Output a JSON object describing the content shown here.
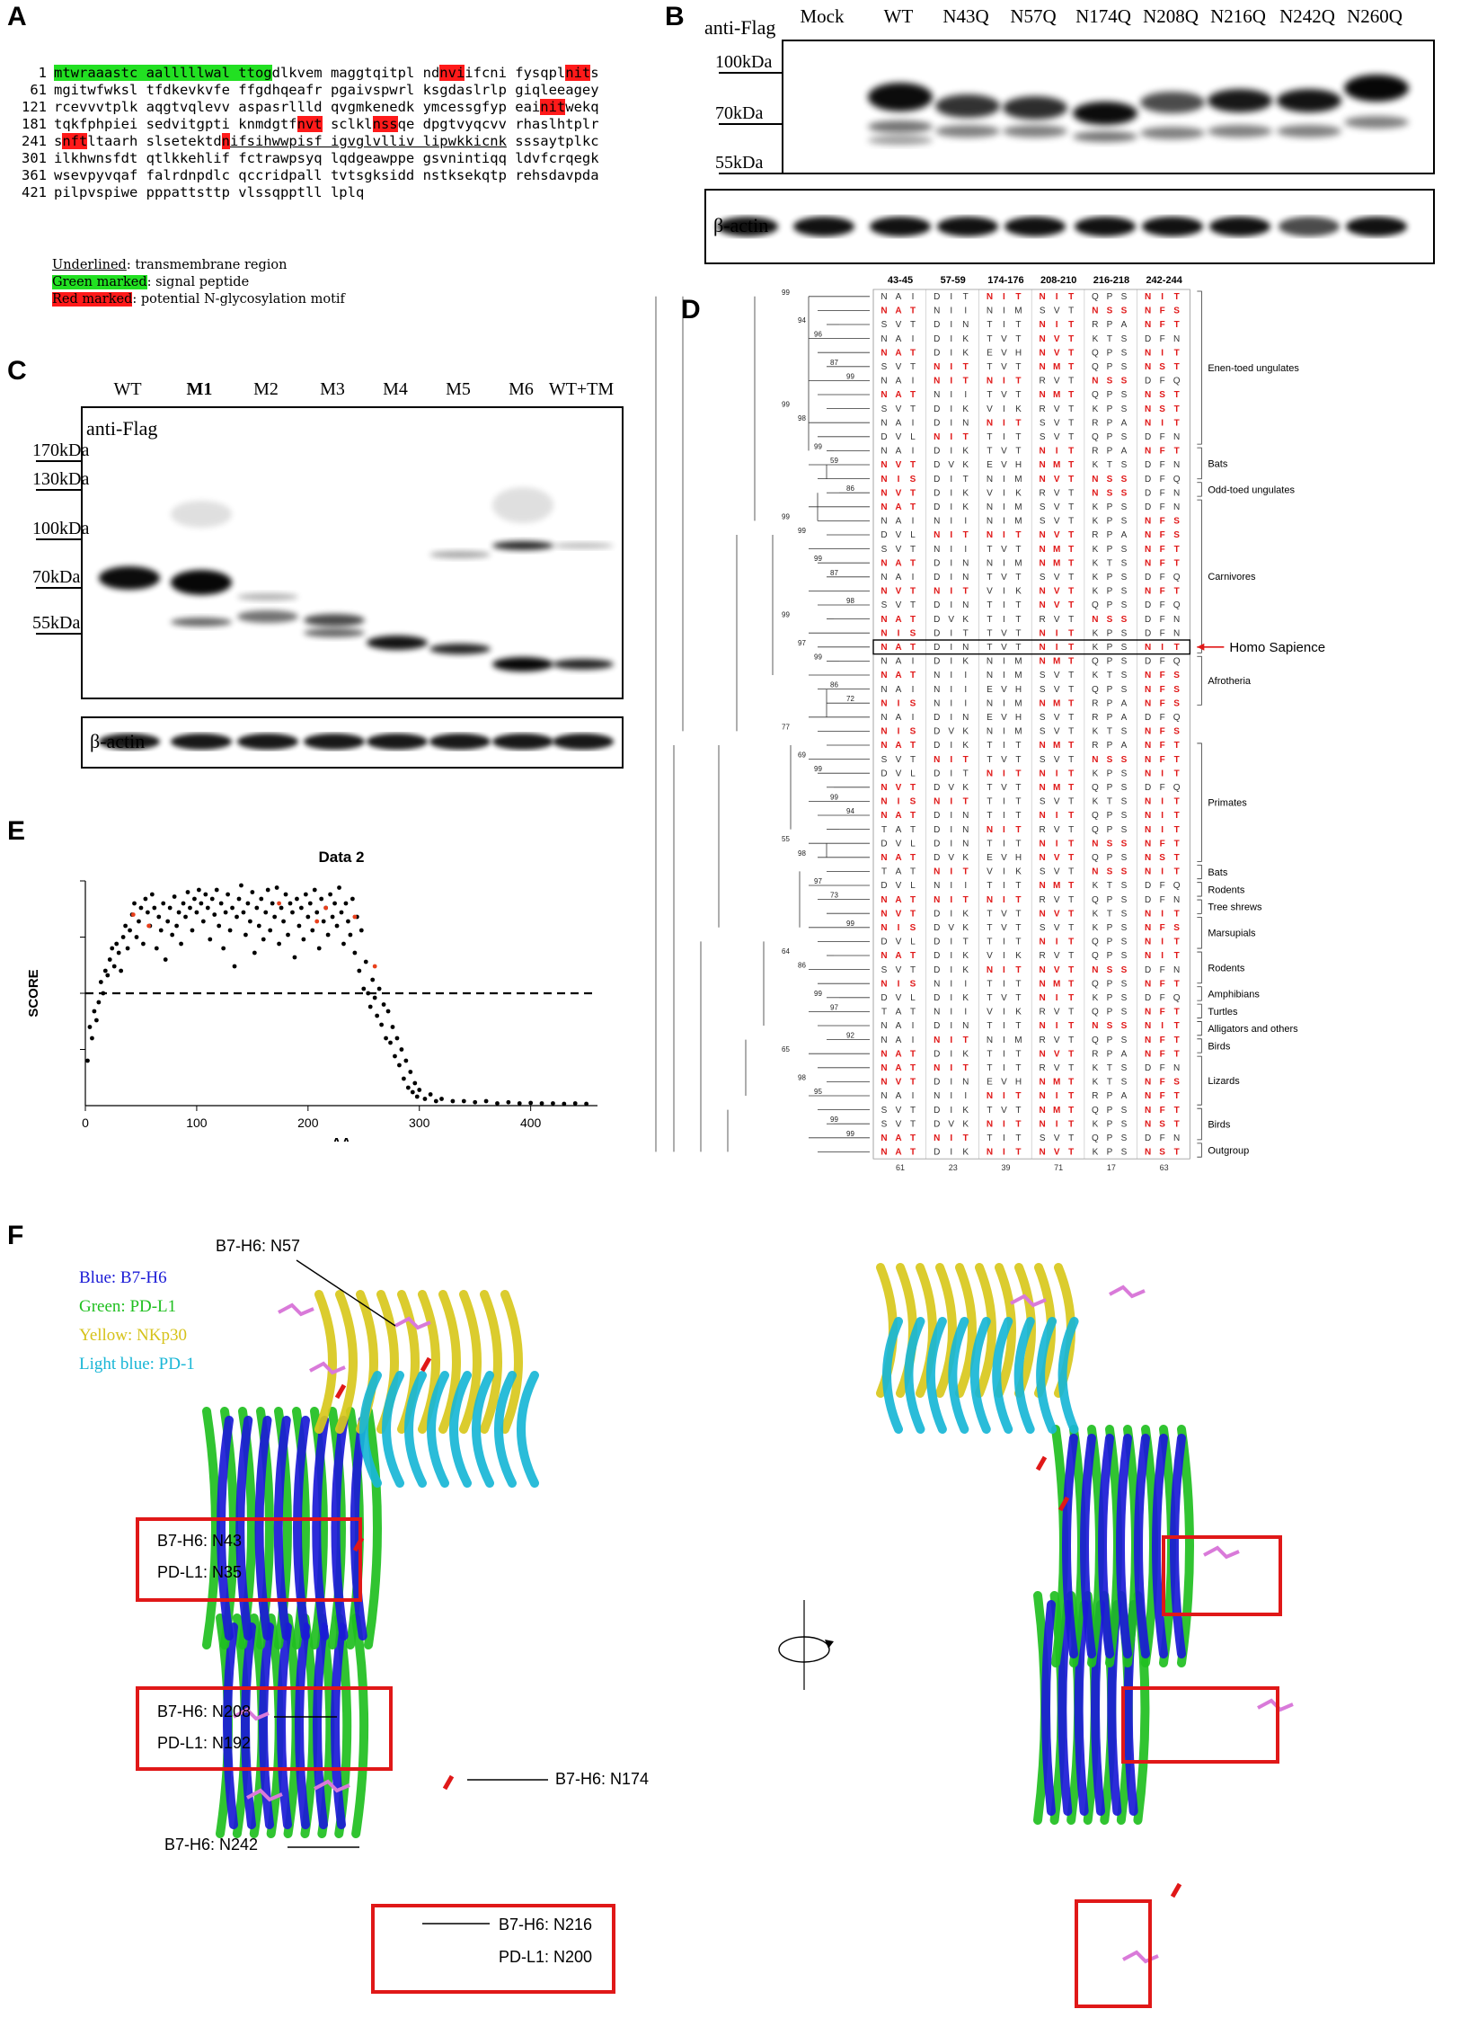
{
  "panels": {
    "A": "A",
    "B": "B",
    "C": "C",
    "D": "D",
    "E": "E",
    "F": "F"
  },
  "panelA": {
    "lines": [
      {
        "num": "1",
        "segments": [
          {
            "t": "mtwraaastc aalllllwal ttog",
            "s": "green"
          },
          {
            "t": "dlkvem maggtqitpl nd",
            "s": ""
          },
          {
            "t": "nvi",
            "s": "red"
          },
          {
            "t": "ifcni fysqpl",
            "s": ""
          },
          {
            "t": "nit",
            "s": "red"
          },
          {
            "t": "s",
            "s": ""
          }
        ]
      },
      {
        "num": "61",
        "segments": [
          {
            "t": "mgitwfwksl tfdkevkvfe ffgdhqeafr pgaivspwrl ksgdaslrlp giqleeagey",
            "s": ""
          }
        ]
      },
      {
        "num": "121",
        "segments": [
          {
            "t": "rcevvvtplk aqgtvqlevv aspasrllld qvgmkenedk ymcessgfyp eai",
            "s": ""
          },
          {
            "t": "nit",
            "s": "red"
          },
          {
            "t": "wekq",
            "s": ""
          }
        ]
      },
      {
        "num": "181",
        "segments": [
          {
            "t": "tqkfphpiei sedvitgpti knmdgtf",
            "s": ""
          },
          {
            "t": "nvt",
            "s": "red"
          },
          {
            "t": " sclkl",
            "s": ""
          },
          {
            "t": "nss",
            "s": "red"
          },
          {
            "t": "qe dpgtvyqcvv rhaslhtplr",
            "s": ""
          }
        ]
      },
      {
        "num": "241",
        "segments": [
          {
            "t": "s",
            "s": ""
          },
          {
            "t": "nft",
            "s": "red"
          },
          {
            "t": "ltaarh slsetektd",
            "s": ""
          },
          {
            "t": "n",
            "s": "red"
          },
          {
            "t": "ifsihwwpisf igvglvlliv lipwkkicnk",
            "s": "u"
          },
          {
            "t": " sssaytplkc",
            "s": ""
          }
        ]
      },
      {
        "num": "301",
        "segments": [
          {
            "t": "ilkhwnsfdt qtlkkehlif fctrawpsyq lqdgeawppe gsvnintiqq ldvfcrqegk",
            "s": ""
          }
        ]
      },
      {
        "num": "361",
        "segments": [
          {
            "t": "wsevpyvqaf falrdnpdlc qccridpall tvtsgksidd nstksekqtp rehsdavpda",
            "s": ""
          }
        ]
      },
      {
        "num": "421",
        "segments": [
          {
            "t": "pilpvspiwe pppattsttp vlssqpptll lplq",
            "s": ""
          }
        ]
      }
    ],
    "legend": [
      {
        "key": "Underlined",
        "rest": ": transmembrane region",
        "s": "u"
      },
      {
        "key": "Green marked",
        "rest": ": signal  peptide",
        "s": "green"
      },
      {
        "key": "Red marked",
        "rest": ": potential N-glycosylation motif",
        "s": "red"
      }
    ]
  },
  "panelB": {
    "antibody": "anti-Flag",
    "lanes": [
      "Mock",
      "WT",
      "N43Q",
      "N57Q",
      "N174Q",
      "N208Q",
      "N216Q",
      "N242Q",
      "N260Q"
    ],
    "markers": [
      "100kDa",
      "70kDa",
      "55kDa"
    ],
    "loading": "β-actin"
  },
  "panelC": {
    "antibody": "anti-Flag",
    "lanes": [
      "WT",
      "M1",
      "M2",
      "M3",
      "M4",
      "M5",
      "M6",
      "WT+TM"
    ],
    "markers": [
      "170kDa",
      "130kDa",
      "100kDa",
      "70kDa",
      "55kDa"
    ],
    "loading": "β-actin"
  },
  "panelD": {
    "sites": [
      "43-45",
      "57-59",
      "174-176",
      "208-210",
      "216-218",
      "242-244"
    ],
    "groups": [
      "Enen-toed ungulates",
      "Bats",
      "Odd-toed ungulates",
      "Carnivores",
      "Afrotheria",
      "Homo Sapience",
      "Primates",
      "Bats",
      "Rodents",
      "Tree shrews",
      "Marsupials",
      "Rodents",
      "Amphibians",
      "Turtles",
      "Alligators and others",
      "Birds",
      "Lizards",
      "Birds",
      "Outgroup"
    ],
    "bootstrap": [
      "99",
      "94",
      "96",
      "87",
      "99",
      "99",
      "98",
      "99",
      "59",
      "86",
      "99",
      "99",
      "99",
      "87",
      "98",
      "99",
      "97",
      "99",
      "86",
      "72",
      "77",
      "69",
      "99",
      "99",
      "94",
      "55",
      "98",
      "97",
      "73",
      "99",
      "64",
      "86",
      "99",
      "97",
      "92",
      "65",
      "98",
      "95",
      "99",
      "99"
    ],
    "footer": [
      "61",
      "23",
      "39",
      "71",
      "17",
      "63"
    ]
  },
  "panelE": {
    "chart_data": {
      "type": "scatter",
      "title": "Data 2",
      "xlabel": "AA",
      "ylabel": "SCORE",
      "xticks": [
        0,
        100,
        200,
        300,
        400
      ],
      "xlim": [
        0,
        460
      ],
      "ylim": [
        0,
        1
      ],
      "threshold": 0.5,
      "grid": false,
      "series": [
        {
          "color": "#000000",
          "points": [
            [
              2,
              0.2
            ],
            [
              4,
              0.35
            ],
            [
              6,
              0.3
            ],
            [
              8,
              0.42
            ],
            [
              10,
              0.38
            ],
            [
              12,
              0.46
            ],
            [
              14,
              0.55
            ],
            [
              16,
              0.5
            ],
            [
              18,
              0.6
            ],
            [
              20,
              0.58
            ],
            [
              22,
              0.65
            ],
            [
              24,
              0.7
            ],
            [
              26,
              0.62
            ],
            [
              28,
              0.72
            ],
            [
              30,
              0.68
            ],
            [
              32,
              0.6
            ],
            [
              34,
              0.75
            ],
            [
              36,
              0.8
            ],
            [
              38,
              0.7
            ],
            [
              40,
              0.78
            ],
            [
              42,
              0.85
            ],
            [
              44,
              0.9
            ],
            [
              46,
              0.75
            ],
            [
              48,
              0.82
            ],
            [
              50,
              0.88
            ],
            [
              52,
              0.72
            ],
            [
              54,
              0.92
            ],
            [
              56,
              0.86
            ],
            [
              58,
              0.8
            ],
            [
              60,
              0.94
            ],
            [
              62,
              0.88
            ],
            [
              64,
              0.7
            ],
            [
              66,
              0.84
            ],
            [
              68,
              0.78
            ],
            [
              70,
              0.9
            ],
            [
              72,
              0.65
            ],
            [
              74,
              0.82
            ],
            [
              76,
              0.88
            ],
            [
              78,
              0.76
            ],
            [
              80,
              0.93
            ],
            [
              82,
              0.8
            ],
            [
              84,
              0.86
            ],
            [
              86,
              0.72
            ],
            [
              88,
              0.9
            ],
            [
              90,
              0.84
            ],
            [
              92,
              0.95
            ],
            [
              94,
              0.88
            ],
            [
              96,
              0.78
            ],
            [
              98,
              0.92
            ],
            [
              100,
              0.86
            ],
            [
              102,
              0.96
            ],
            [
              104,
              0.9
            ],
            [
              106,
              0.82
            ],
            [
              108,
              0.94
            ],
            [
              110,
              0.88
            ],
            [
              112,
              0.74
            ],
            [
              114,
              0.92
            ],
            [
              116,
              0.85
            ],
            [
              118,
              0.96
            ],
            [
              120,
              0.8
            ],
            [
              122,
              0.9
            ],
            [
              124,
              0.7
            ],
            [
              126,
              0.86
            ],
            [
              128,
              0.94
            ],
            [
              130,
              0.78
            ],
            [
              132,
              0.88
            ],
            [
              134,
              0.62
            ],
            [
              136,
              0.84
            ],
            [
              138,
              0.92
            ],
            [
              140,
              0.98
            ],
            [
              142,
              0.86
            ],
            [
              144,
              0.76
            ],
            [
              146,
              0.9
            ],
            [
              148,
              0.82
            ],
            [
              150,
              0.95
            ],
            [
              152,
              0.68
            ],
            [
              154,
              0.88
            ],
            [
              156,
              0.8
            ],
            [
              158,
              0.92
            ],
            [
              160,
              0.74
            ],
            [
              162,
              0.86
            ],
            [
              164,
              0.96
            ],
            [
              166,
              0.78
            ],
            [
              168,
              0.9
            ],
            [
              170,
              0.84
            ],
            [
              172,
              0.97
            ],
            [
              174,
              0.72
            ],
            [
              176,
              0.88
            ],
            [
              178,
              0.82
            ],
            [
              180,
              0.94
            ],
            [
              182,
              0.76
            ],
            [
              184,
              0.9
            ],
            [
              186,
              0.86
            ],
            [
              188,
              0.66
            ],
            [
              190,
              0.92
            ],
            [
              192,
              0.8
            ],
            [
              194,
              0.88
            ],
            [
              196,
              0.74
            ],
            [
              198,
              0.94
            ],
            [
              200,
              0.84
            ],
            [
              202,
              0.9
            ],
            [
              204,
              0.78
            ],
            [
              206,
              0.96
            ],
            [
              208,
              0.86
            ],
            [
              210,
              0.7
            ],
            [
              212,
              0.92
            ],
            [
              214,
              0.82
            ],
            [
              216,
              0.88
            ],
            [
              218,
              0.76
            ],
            [
              220,
              0.94
            ],
            [
              222,
              0.84
            ],
            [
              224,
              0.9
            ],
            [
              226,
              0.8
            ],
            [
              228,
              0.97
            ],
            [
              230,
              0.86
            ],
            [
              232,
              0.72
            ],
            [
              234,
              0.9
            ],
            [
              236,
              0.82
            ],
            [
              238,
              0.76
            ],
            [
              240,
              0.92
            ],
            [
              242,
              0.68
            ],
            [
              244,
              0.84
            ],
            [
              246,
              0.6
            ],
            [
              248,
              0.78
            ],
            [
              250,
              0.52
            ],
            [
              252,
              0.64
            ],
            [
              254,
              0.5
            ],
            [
              256,
              0.44
            ],
            [
              258,
              0.56
            ],
            [
              260,
              0.48
            ],
            [
              262,
              0.4
            ],
            [
              264,
              0.52
            ],
            [
              266,
              0.36
            ],
            [
              268,
              0.45
            ],
            [
              270,
              0.3
            ],
            [
              272,
              0.42
            ],
            [
              274,
              0.28
            ],
            [
              276,
              0.35
            ],
            [
              278,
              0.22
            ],
            [
              280,
              0.3
            ],
            [
              282,
              0.18
            ],
            [
              284,
              0.25
            ],
            [
              286,
              0.12
            ],
            [
              288,
              0.2
            ],
            [
              290,
              0.08
            ],
            [
              292,
              0.15
            ],
            [
              294,
              0.06
            ],
            [
              296,
              0.1
            ],
            [
              298,
              0.04
            ],
            [
              300,
              0.07
            ],
            [
              305,
              0.03
            ],
            [
              310,
              0.05
            ],
            [
              315,
              0.02
            ],
            [
              320,
              0.03
            ],
            [
              330,
              0.02
            ],
            [
              340,
              0.02
            ],
            [
              350,
              0.015
            ],
            [
              360,
              0.02
            ],
            [
              370,
              0.01
            ],
            [
              380,
              0.015
            ],
            [
              390,
              0.01
            ],
            [
              400,
              0.012
            ],
            [
              410,
              0.01
            ],
            [
              420,
              0.01
            ],
            [
              430,
              0.008
            ],
            [
              440,
              0.01
            ],
            [
              450,
              0.008
            ]
          ]
        },
        {
          "color": "#e8401c",
          "points": [
            [
              43,
              0.85
            ],
            [
              57,
              0.8
            ],
            [
              174,
              0.9
            ],
            [
              208,
              0.82
            ],
            [
              216,
              0.88
            ],
            [
              242,
              0.84
            ],
            [
              260,
              0.62
            ]
          ]
        }
      ]
    }
  },
  "panelF": {
    "legend": [
      {
        "text": "Blue: B7-H6",
        "color": "#1a1ad6"
      },
      {
        "text": "Green: PD-L1",
        "color": "#1fbf1f"
      },
      {
        "text": "Yellow: NKp30",
        "color": "#d6c21a"
      },
      {
        "text": "Light blue: PD-1",
        "color": "#18b6d6"
      }
    ],
    "labels": {
      "n57": "B7-H6: N57",
      "n43": "B7-H6: N43",
      "n35": "PD-L1: N35",
      "n208": "B7-H6: N208",
      "n192": "PD-L1: N192",
      "n174": "B7-H6: N174",
      "n242": "B7-H6: N242",
      "n216": "B7-H6: N216",
      "n200": "PD-L1: N200"
    }
  }
}
